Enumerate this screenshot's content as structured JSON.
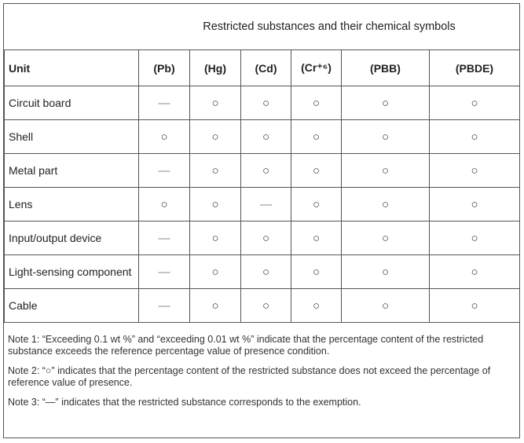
{
  "table": {
    "title": "Restricted substances and their chemical symbols",
    "header": [
      "Unit",
      "(Pb)",
      "(Hg)",
      "(Cd)",
      "(Cr⁺⁶)",
      "(PBB)",
      "(PBDE)"
    ],
    "rows": [
      [
        "Circuit board",
        "—",
        "○",
        "○",
        "○",
        "○",
        "○"
      ],
      [
        "Shell",
        "○",
        "○",
        "○",
        "○",
        "○",
        "○"
      ],
      [
        "Metal part",
        "—",
        "○",
        "○",
        "○",
        "○",
        "○"
      ],
      [
        "Lens",
        "○",
        "○",
        "—",
        "○",
        "○",
        "○"
      ],
      [
        "Input/output device",
        "—",
        "○",
        "○",
        "○",
        "○",
        "○"
      ],
      [
        "Light-sensing component",
        "—",
        "○",
        "○",
        "○",
        "○",
        "○"
      ],
      [
        "Cable",
        "—",
        "○",
        "○",
        "○",
        "○",
        "○"
      ]
    ]
  },
  "notes": [
    "Note 1: “Exceeding 0.1 wt %” and “exceeding 0.01 wt %” indicate that the percentage content of the restricted substance exceeds the reference percentage value of presence condition.",
    "Note 2: “○” indicates that the percentage content of the restricted substance does not exceed the percentage of reference value of presence.",
    "Note 3: “—” indicates that the restricted substance corresponds to the exemption."
  ]
}
